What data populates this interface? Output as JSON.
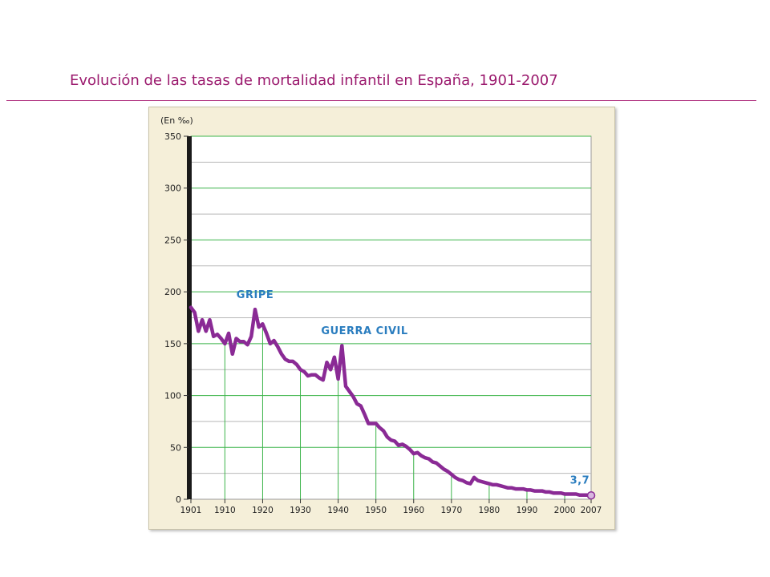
{
  "slide": {
    "title": "Evolución de las tasas de mortalidad infantil en España, 1901-2007"
  },
  "colors": {
    "title": "#9b1a6e",
    "rule": "#b0317f",
    "panel_bg": "#f5efd9",
    "plot_bg": "#ffffff",
    "grid_major": "#3cb44a",
    "grid_minor": "#b8b8b8",
    "line": "#8a2a95",
    "annotation": "#2a7dbf"
  },
  "chart_data": {
    "type": "line",
    "title": "",
    "xlabel": "",
    "ylabel": "(En ‰)",
    "xlim": [
      1901,
      2007
    ],
    "ylim": [
      0,
      350
    ],
    "x_ticks": [
      1901,
      1910,
      1920,
      1930,
      1940,
      1950,
      1960,
      1970,
      1980,
      1990,
      2000,
      2007
    ],
    "y_ticks": [
      0,
      50,
      100,
      150,
      200,
      250,
      300,
      350
    ],
    "grid": true,
    "legend": "none",
    "annotations": [
      {
        "text": "GRIPE",
        "x": 1918,
        "y": 194
      },
      {
        "text": "GUERRA CIVIL",
        "x": 1947,
        "y": 159
      },
      {
        "text": "3,7",
        "x": 2004,
        "y": 15
      }
    ],
    "series": [
      {
        "x": [
          1901,
          1902,
          1903,
          1904,
          1905,
          1906,
          1907,
          1908,
          1909,
          1910,
          1911,
          1912,
          1913,
          1914,
          1915,
          1916,
          1917,
          1918,
          1919,
          1920,
          1921,
          1922,
          1923,
          1924,
          1925,
          1926,
          1927,
          1928,
          1929,
          1930,
          1931,
          1932,
          1933,
          1934,
          1935,
          1936,
          1937,
          1938,
          1939,
          1940,
          1941,
          1942,
          1943,
          1944,
          1945,
          1946,
          1947,
          1948,
          1949,
          1950,
          1951,
          1952,
          1953,
          1954,
          1955,
          1956,
          1957,
          1958,
          1959,
          1960,
          1961,
          1962,
          1963,
          1964,
          1965,
          1966,
          1967,
          1968,
          1969,
          1970,
          1971,
          1972,
          1973,
          1974,
          1975,
          1976,
          1977,
          1978,
          1979,
          1980,
          1981,
          1982,
          1983,
          1984,
          1985,
          1986,
          1987,
          1988,
          1989,
          1990,
          1991,
          1992,
          1993,
          1994,
          1995,
          1996,
          1997,
          1998,
          1999,
          2000,
          2001,
          2002,
          2003,
          2004,
          2005,
          2006,
          2007
        ],
        "values": [
          185,
          180,
          162,
          173,
          162,
          173,
          157,
          159,
          155,
          150,
          160,
          140,
          155,
          152,
          152,
          149,
          157,
          183,
          166,
          169,
          160,
          150,
          153,
          147,
          140,
          135,
          133,
          133,
          130,
          125,
          123,
          119,
          120,
          120,
          117,
          115,
          132,
          125,
          137,
          116,
          148,
          109,
          104,
          99,
          92,
          90,
          82,
          73,
          73,
          73,
          69,
          66,
          60,
          57,
          56,
          52,
          53,
          51,
          48,
          44,
          45,
          42,
          40,
          39,
          36,
          35,
          32,
          29,
          27,
          24,
          21,
          19,
          18,
          16,
          15,
          21,
          18,
          17,
          16,
          15,
          14,
          14,
          13,
          12,
          11,
          11,
          10,
          10,
          10,
          9,
          9,
          8,
          8,
          8,
          7,
          7,
          6,
          6,
          6,
          5,
          5,
          5,
          5,
          4,
          4,
          4,
          3.7
        ]
      }
    ]
  }
}
